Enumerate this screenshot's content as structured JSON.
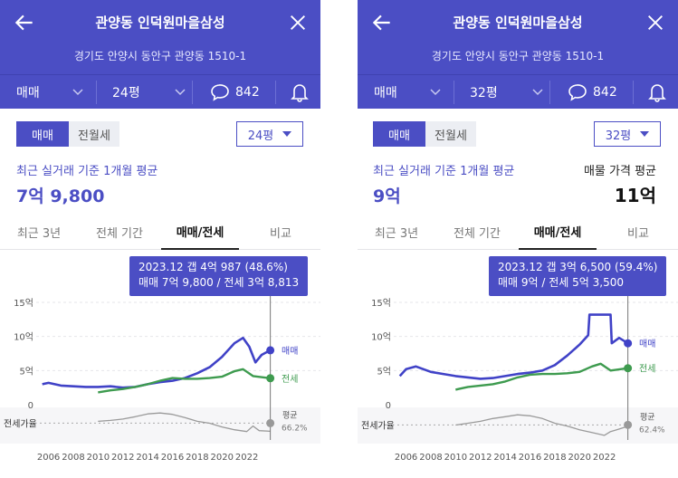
{
  "icons": {
    "back": "arrow-left-icon",
    "close": "close-icon",
    "chevron": "chevron-down-icon",
    "chat": "chat-bubble-icon",
    "bell": "bell-icon",
    "dropdown": "caret-down-icon"
  },
  "colors": {
    "header": "#4b4ec4",
    "sale": "#4042c7",
    "jeonse": "#3e9b4f",
    "ratio": "#9a9a9a"
  },
  "panels": [
    {
      "header": {
        "title": "관양동 인덕원마을삼성",
        "address": "경기도 안양시 동안구 관양동 1510-1"
      },
      "subbar": {
        "trade_type": "매매",
        "area": "24평",
        "comment_count": "842"
      },
      "segment": {
        "active": "매매",
        "inactive": "전월세"
      },
      "area_select": "24평",
      "avg_label": "최근 실거래 기준 1개월 평균",
      "avg_value": "7억 9,800",
      "listing_label": "",
      "listing_value": "",
      "tabs": [
        "최근 3년",
        "전체 기간",
        "매매/전세",
        "비교"
      ],
      "active_tab": 2,
      "tooltip": {
        "line1": "2023.12  갭 4억 987 (48.6%)",
        "line2": "매매 7억 9,800 / 전세 3억 8,813"
      },
      "chart_data": {
        "type": "line",
        "x_ticks": [
          "2006",
          "2008",
          "2010",
          "2012",
          "2014",
          "2016",
          "2018",
          "2020",
          "2022"
        ],
        "y_ticks": [
          "15억",
          "10억",
          "5억",
          "0"
        ],
        "ylim": [
          0,
          15
        ],
        "ratio_label": "전세가율",
        "ratio_avg_label": "평균",
        "ratio_avg_value": "66.2%",
        "series": [
          {
            "name": "매매",
            "points": [
              [
                2005.5,
                3.0
              ],
              [
                2006,
                3.2
              ],
              [
                2007,
                2.8
              ],
              [
                2008,
                2.7
              ],
              [
                2009,
                2.6
              ],
              [
                2010,
                2.6
              ],
              [
                2011,
                2.7
              ],
              [
                2012,
                2.5
              ],
              [
                2013,
                2.6
              ],
              [
                2014,
                3.0
              ],
              [
                2015,
                3.3
              ],
              [
                2016,
                3.5
              ],
              [
                2017,
                3.9
              ],
              [
                2018,
                4.6
              ],
              [
                2019,
                5.5
              ],
              [
                2020,
                7.0
              ],
              [
                2021,
                9.0
              ],
              [
                2021.7,
                9.8
              ],
              [
                2022.2,
                8.5
              ],
              [
                2022.7,
                6.2
              ],
              [
                2023.2,
                7.3
              ],
              [
                2023.9,
                7.98
              ]
            ]
          },
          {
            "name": "전세",
            "points": [
              [
                2010,
                1.8
              ],
              [
                2011,
                2.1
              ],
              [
                2012,
                2.3
              ],
              [
                2013,
                2.6
              ],
              [
                2014,
                3.0
              ],
              [
                2015,
                3.5
              ],
              [
                2016,
                3.9
              ],
              [
                2017,
                3.8
              ],
              [
                2018,
                3.8
              ],
              [
                2019,
                3.9
              ],
              [
                2020,
                4.1
              ],
              [
                2021,
                4.9
              ],
              [
                2021.7,
                5.2
              ],
              [
                2022.5,
                4.2
              ],
              [
                2023.9,
                3.88
              ]
            ]
          },
          {
            "name": "전세가율",
            "points": [
              [
                2010,
                0.7
              ],
              [
                2011,
                0.72
              ],
              [
                2012,
                0.75
              ],
              [
                2013,
                0.8
              ],
              [
                2014,
                0.86
              ],
              [
                2015,
                0.88
              ],
              [
                2016,
                0.85
              ],
              [
                2017,
                0.78
              ],
              [
                2018,
                0.7
              ],
              [
                2019,
                0.66
              ],
              [
                2020,
                0.58
              ],
              [
                2021,
                0.52
              ],
              [
                2022,
                0.48
              ],
              [
                2022.5,
                0.6
              ],
              [
                2023,
                0.5
              ],
              [
                2023.9,
                0.486
              ]
            ]
          }
        ],
        "ratio_avg": 0.662,
        "marker_x": 2023.9
      }
    },
    {
      "header": {
        "title": "관양동 인덕원마을삼성",
        "address": "경기도 안양시 동안구 관양동 1510-1"
      },
      "subbar": {
        "trade_type": "매매",
        "area": "32평",
        "comment_count": "842"
      },
      "segment": {
        "active": "매매",
        "inactive": "전월세"
      },
      "area_select": "32평",
      "avg_label": "최근 실거래 기준 1개월 평균",
      "avg_value": "9억",
      "listing_label": "매물 가격 평균",
      "listing_value": "11억",
      "tabs": [
        "최근 3년",
        "전체 기간",
        "매매/전세",
        "비교"
      ],
      "active_tab": 2,
      "tooltip": {
        "line1": "2023.12  갭 3억 6,500 (59.4%)",
        "line2": "매매 9억 / 전세 5억 3,500"
      },
      "chart_data": {
        "type": "line",
        "x_ticks": [
          "2006",
          "2008",
          "2010",
          "2012",
          "2014",
          "2016",
          "2018",
          "2020",
          "2022"
        ],
        "y_ticks": [
          "15억",
          "10억",
          "5억",
          "0"
        ],
        "ylim": [
          0,
          15
        ],
        "ratio_label": "전세가율",
        "ratio_avg_label": "평균",
        "ratio_avg_value": "62.4%",
        "series": [
          {
            "name": "매매",
            "points": [
              [
                2005.5,
                4.2
              ],
              [
                2006,
                5.2
              ],
              [
                2006.8,
                5.6
              ],
              [
                2008,
                4.8
              ],
              [
                2009,
                4.5
              ],
              [
                2010,
                4.2
              ],
              [
                2011,
                4.0
              ],
              [
                2012,
                3.8
              ],
              [
                2013,
                3.9
              ],
              [
                2014,
                4.2
              ],
              [
                2015,
                4.5
              ],
              [
                2016,
                4.7
              ],
              [
                2017,
                5.0
              ],
              [
                2018,
                5.8
              ],
              [
                2019,
                7.2
              ],
              [
                2020,
                8.8
              ],
              [
                2020.7,
                10.2
              ],
              [
                2020.8,
                13.2
              ],
              [
                2022.5,
                13.2
              ],
              [
                2022.6,
                9.0
              ],
              [
                2023.2,
                9.8
              ],
              [
                2023.9,
                9.0
              ]
            ]
          },
          {
            "name": "전세",
            "points": [
              [
                2010,
                2.2
              ],
              [
                2011,
                2.6
              ],
              [
                2012,
                2.8
              ],
              [
                2013,
                3.0
              ],
              [
                2014,
                3.4
              ],
              [
                2015,
                4.0
              ],
              [
                2016,
                4.4
              ],
              [
                2017,
                4.5
              ],
              [
                2018,
                4.5
              ],
              [
                2019,
                4.6
              ],
              [
                2020,
                4.8
              ],
              [
                2021,
                5.6
              ],
              [
                2021.7,
                6.0
              ],
              [
                2022.5,
                5.0
              ],
              [
                2023.9,
                5.35
              ]
            ]
          },
          {
            "name": "전세가율",
            "points": [
              [
                2010,
                0.62
              ],
              [
                2011,
                0.66
              ],
              [
                2012,
                0.7
              ],
              [
                2013,
                0.76
              ],
              [
                2014,
                0.8
              ],
              [
                2015,
                0.84
              ],
              [
                2016,
                0.82
              ],
              [
                2017,
                0.76
              ],
              [
                2018,
                0.66
              ],
              [
                2019,
                0.6
              ],
              [
                2020,
                0.52
              ],
              [
                2021,
                0.46
              ],
              [
                2022,
                0.4
              ],
              [
                2022.5,
                0.48
              ],
              [
                2023,
                0.52
              ],
              [
                2023.9,
                0.594
              ]
            ]
          }
        ],
        "ratio_avg": 0.624,
        "marker_x": 2023.9
      }
    }
  ]
}
